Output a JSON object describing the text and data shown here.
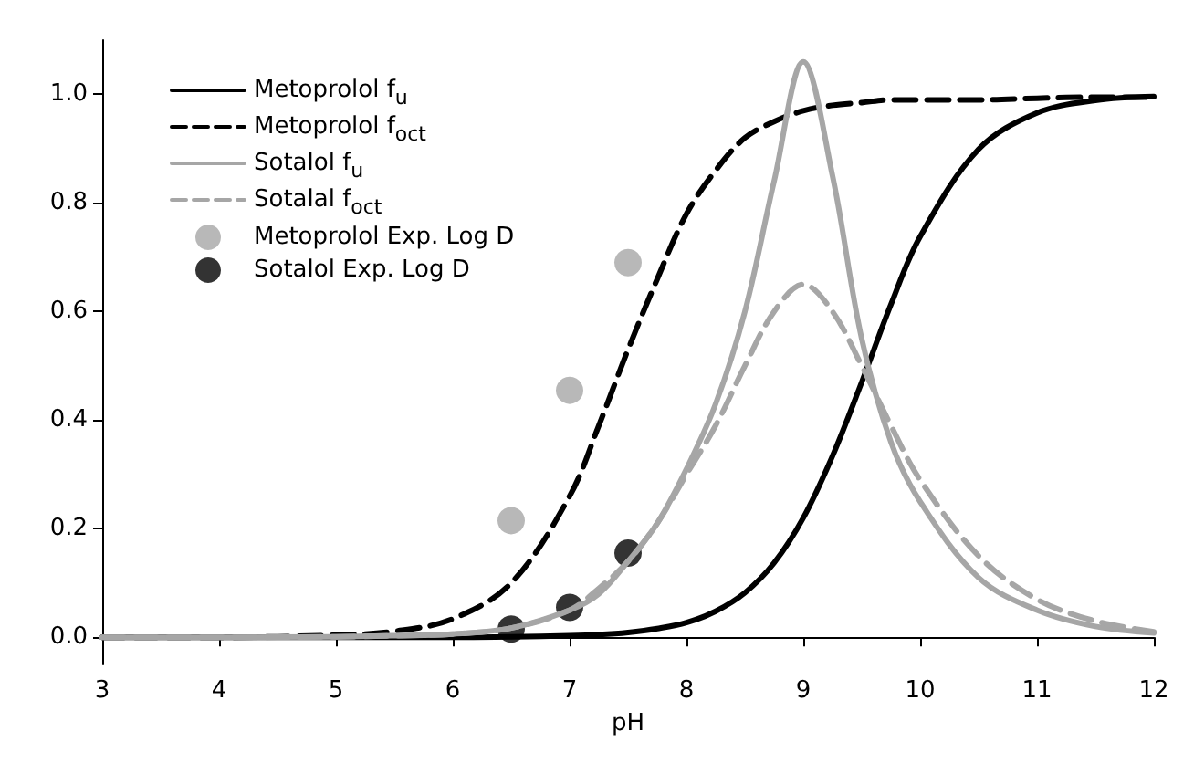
{
  "chart_data": {
    "type": "line",
    "xlabel": "pH",
    "xlim": [
      3,
      12
    ],
    "xticks": [
      3,
      4,
      5,
      6,
      7,
      8,
      9,
      10,
      11,
      12
    ],
    "ylim": [
      -0.05,
      1.1
    ],
    "yticks": [
      {
        "value": 0,
        "label": "0.0"
      },
      {
        "value": 0.2,
        "label": "0.2"
      },
      {
        "value": 0.4,
        "label": "0.4"
      },
      {
        "value": 0.6,
        "label": "0.6"
      },
      {
        "value": 0.8,
        "label": "0.8"
      },
      {
        "value": 1,
        "label": "1.0"
      }
    ],
    "grid": false,
    "legend": "top left",
    "series": [
      {
        "name": "Metoprolol f$_{u}$",
        "color": "#000000",
        "line_style": "solid",
        "marker": "none",
        "x": [
          3,
          4,
          5,
          5.5,
          6,
          6.5,
          7,
          7.25,
          7.5,
          7.75,
          8,
          8.25,
          8.5,
          8.75,
          9,
          9.25,
          9.5,
          9.75,
          10,
          10.5,
          11,
          11.5,
          12
        ],
        "values": [
          0,
          0,
          0,
          0,
          0,
          0.001,
          0.003,
          0.005,
          0.009,
          0.016,
          0.027,
          0.048,
          0.082,
          0.137,
          0.22,
          0.334,
          0.47,
          0.613,
          0.738,
          0.899,
          0.966,
          0.989,
          0.996
        ]
      },
      {
        "name": "Metoprolol f$_{oct}$",
        "color": "#000000",
        "line_style": "dashed",
        "marker": "none",
        "x": [
          3,
          4,
          5,
          5.5,
          6,
          6.5,
          7,
          7.25,
          7.5,
          7.75,
          8,
          8.25,
          8.5,
          8.75,
          9,
          9.25,
          9.5,
          9.75,
          10,
          10.5,
          11,
          11.5,
          12
        ],
        "values": [
          0,
          0,
          0.004,
          0.011,
          0.034,
          0.1,
          0.26,
          0.39,
          0.53,
          0.66,
          0.78,
          0.86,
          0.92,
          0.95,
          0.97,
          0.98,
          0.985,
          0.99,
          0.99,
          0.99,
          0.993,
          0.995,
          0.995
        ]
      },
      {
        "name": "Sotalol f$_{u}$",
        "color": "#a6a6a6",
        "line_style": "solid",
        "marker": "none",
        "x": [
          3,
          4,
          5,
          5.5,
          6,
          6.5,
          7,
          7.25,
          7.5,
          7.75,
          8,
          8.25,
          8.5,
          8.75,
          9,
          9.25,
          9.5,
          9.75,
          10,
          10.5,
          11,
          11.5,
          12
        ],
        "values": [
          0,
          0,
          0.001,
          0.003,
          0.006,
          0.017,
          0.05,
          0.08,
          0.14,
          0.21,
          0.31,
          0.43,
          0.6,
          0.84,
          1.06,
          0.85,
          0.55,
          0.36,
          0.25,
          0.11,
          0.05,
          0.02,
          0.008
        ]
      },
      {
        "name": "Sotalal f$_{oct}$",
        "color": "#a6a6a6",
        "line_style": "dashed",
        "marker": "none",
        "x": [
          3,
          4,
          5,
          5.5,
          6,
          6.5,
          7,
          7.25,
          7.5,
          7.75,
          8,
          8.25,
          8.5,
          8.75,
          9,
          9.25,
          9.5,
          9.75,
          10,
          10.5,
          11,
          11.5,
          12
        ],
        "values": [
          0,
          0,
          0.001,
          0.003,
          0.006,
          0.017,
          0.05,
          0.09,
          0.14,
          0.21,
          0.3,
          0.39,
          0.5,
          0.6,
          0.65,
          0.6,
          0.5,
          0.39,
          0.29,
          0.15,
          0.07,
          0.03,
          0.01
        ]
      },
      {
        "name": "Metoprolol Exp. Log D",
        "type": "scatter",
        "color": "#a6a6a6",
        "marker": "circle",
        "x": [
          6.5,
          7,
          7.5
        ],
        "values": [
          0.215,
          0.455,
          0.69
        ]
      },
      {
        "name": "Sotalol Exp. Log D",
        "type": "scatter",
        "color": "#000000",
        "marker": "circle",
        "x": [
          6.5,
          7,
          7.5
        ],
        "values": [
          0.015,
          0.055,
          0.155
        ]
      }
    ]
  }
}
